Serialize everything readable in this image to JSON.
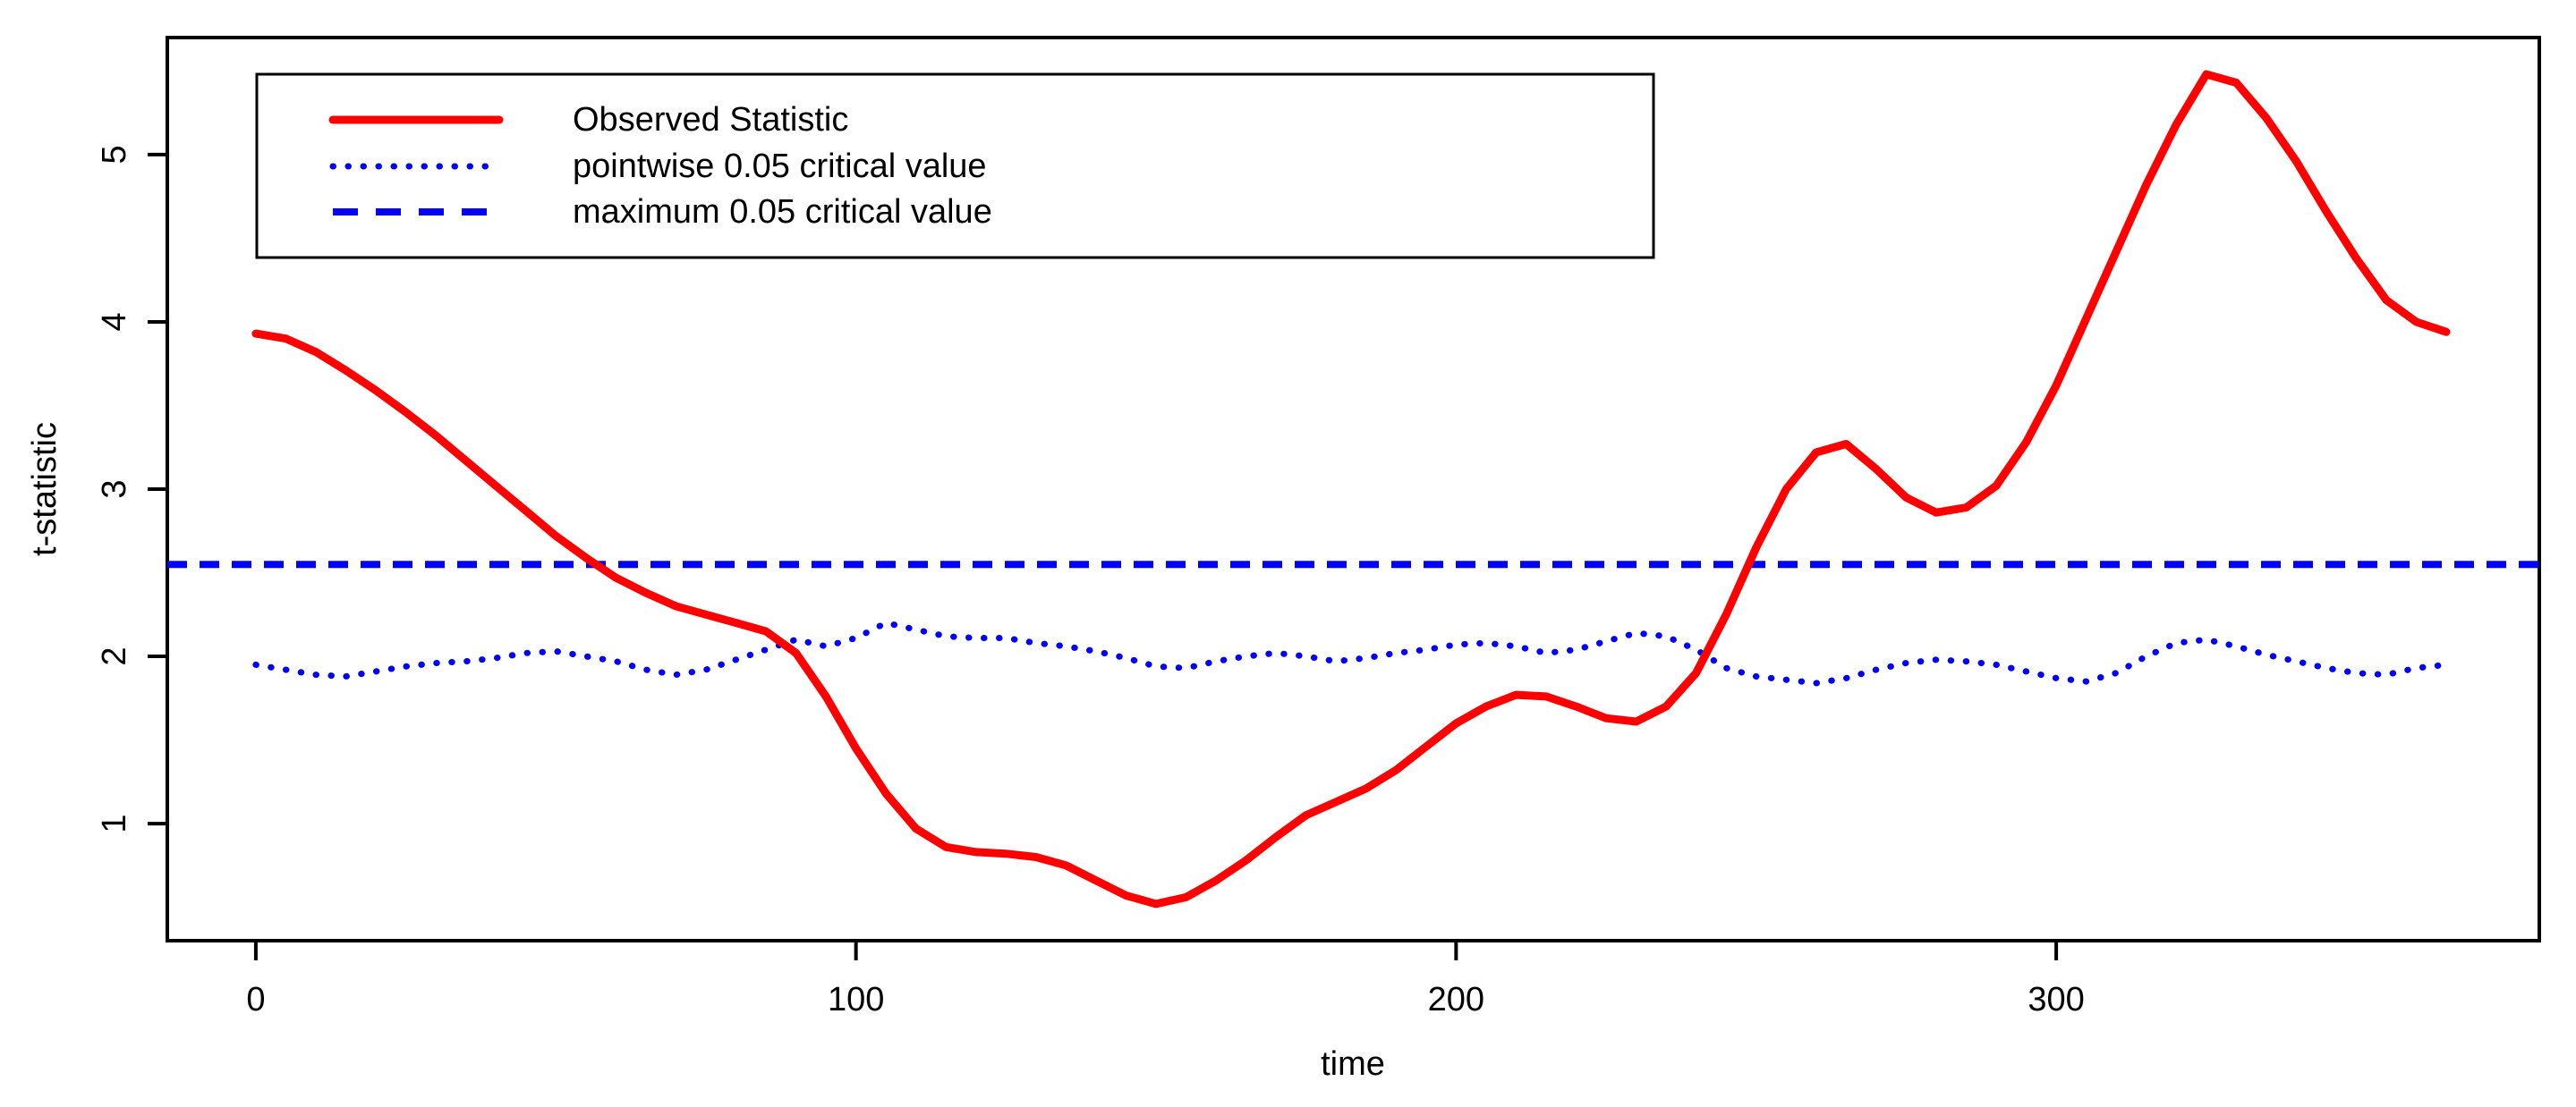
{
  "figure": {
    "background": "#FFFFFF",
    "frame_color": "#000000"
  },
  "chart_data": {
    "type": "line",
    "title": "",
    "xlabel": "time",
    "ylabel": "t-statistic",
    "xlim": [
      -14.75,
      380.5
    ],
    "ylim": [
      0.3,
      5.7
    ],
    "xticks": [
      0,
      100,
      200,
      300
    ],
    "yticks": [
      1,
      2,
      3,
      4,
      5
    ],
    "grid": false,
    "legend_position": "top-left",
    "x": [
      0,
      5,
      10,
      15,
      20,
      25,
      30,
      35,
      40,
      45,
      50,
      55,
      60,
      65,
      70,
      75,
      80,
      85,
      90,
      95,
      100,
      105,
      110,
      115,
      120,
      125,
      130,
      135,
      140,
      145,
      150,
      155,
      160,
      165,
      170,
      175,
      180,
      185,
      190,
      195,
      200,
      205,
      210,
      215,
      220,
      225,
      230,
      235,
      240,
      245,
      250,
      255,
      260,
      265,
      270,
      275,
      280,
      285,
      290,
      295,
      300,
      305,
      310,
      315,
      320,
      325,
      330,
      335,
      340,
      345,
      350,
      355,
      360,
      365
    ],
    "series": [
      {
        "name": "Observed Statistic",
        "color": "#FF0000",
        "line_style": "solid",
        "values": [
          3.93,
          3.9,
          3.82,
          3.71,
          3.59,
          3.46,
          3.32,
          3.17,
          3.02,
          2.87,
          2.72,
          2.59,
          2.47,
          2.38,
          2.3,
          2.25,
          2.2,
          2.15,
          2.02,
          1.76,
          1.45,
          1.18,
          0.97,
          0.86,
          0.83,
          0.82,
          0.8,
          0.75,
          0.66,
          0.57,
          0.52,
          0.56,
          0.66,
          0.78,
          0.92,
          1.05,
          1.13,
          1.21,
          1.32,
          1.46,
          1.6,
          1.7,
          1.77,
          1.76,
          1.7,
          1.63,
          1.61,
          1.7,
          1.9,
          2.25,
          2.65,
          3.0,
          3.22,
          3.27,
          3.12,
          2.95,
          2.86,
          2.89,
          3.02,
          3.28,
          3.62,
          4.02,
          4.42,
          4.82,
          5.18,
          5.48,
          5.43,
          5.22,
          4.96,
          4.66,
          4.38,
          4.13,
          4.0,
          3.94
        ]
      },
      {
        "name": "pointwise 0.05 critical value",
        "color": "#0000FF",
        "line_style": "dotted",
        "values": [
          1.95,
          1.92,
          1.89,
          1.88,
          1.91,
          1.94,
          1.96,
          1.97,
          1.99,
          2.02,
          2.03,
          2.0,
          1.97,
          1.92,
          1.89,
          1.92,
          1.98,
          2.04,
          2.1,
          2.06,
          2.11,
          2.2,
          2.16,
          2.12,
          2.11,
          2.11,
          2.08,
          2.06,
          2.03,
          1.99,
          1.94,
          1.93,
          1.97,
          2.0,
          2.02,
          2.0,
          1.97,
          1.99,
          2.02,
          2.04,
          2.07,
          2.08,
          2.06,
          2.02,
          2.04,
          2.09,
          2.14,
          2.12,
          2.04,
          1.93,
          1.88,
          1.86,
          1.84,
          1.87,
          1.92,
          1.96,
          1.98,
          1.97,
          1.95,
          1.91,
          1.87,
          1.85,
          1.9,
          2.0,
          2.08,
          2.1,
          2.06,
          2.01,
          1.97,
          1.93,
          1.9,
          1.89,
          1.93,
          1.95
        ]
      },
      {
        "name": "maximum 0.05 critical value",
        "color": "#0000FF",
        "line_style": "dashed",
        "constant": 2.55
      }
    ]
  }
}
